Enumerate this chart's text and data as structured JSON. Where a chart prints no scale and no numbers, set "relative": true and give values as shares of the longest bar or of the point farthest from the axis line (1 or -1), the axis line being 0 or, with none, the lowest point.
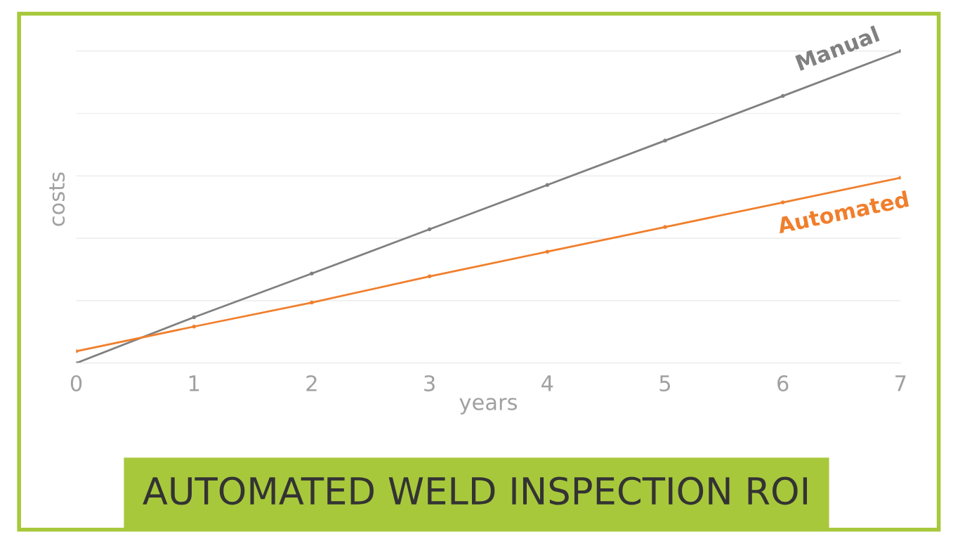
{
  "chart_data": {
    "type": "line",
    "title": "AUTOMATED WELD INSPECTION ROI",
    "xlabel": "years",
    "ylabel": "costs",
    "x": [
      0,
      1,
      2,
      3,
      4,
      5,
      6,
      7
    ],
    "xlim": [
      0,
      7
    ],
    "xticks": [
      0,
      1,
      2,
      3,
      4,
      5,
      6,
      7
    ],
    "relative": true,
    "grid": "y",
    "marker": "circle",
    "line_style": "solid",
    "series": [
      {
        "name": "Manual",
        "color": "#808080",
        "values": [
          0,
          0.147,
          0.287,
          0.429,
          0.571,
          0.713,
          0.856,
          1.0
        ]
      },
      {
        "name": "Automated",
        "color": "#f07f2d",
        "values": [
          0.038,
          0.117,
          0.194,
          0.278,
          0.357,
          0.436,
          0.515,
          0.594
        ]
      }
    ]
  }
}
